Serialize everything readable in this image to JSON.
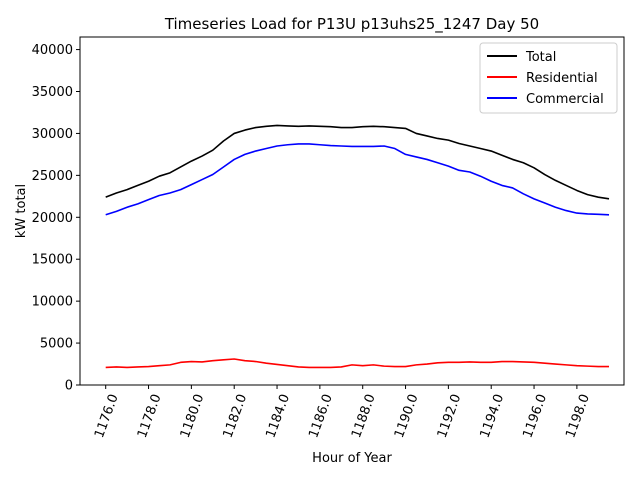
{
  "chart_data": {
    "type": "line",
    "title": "Timeseries Load for P13U p13uhs25_1247  Day 50",
    "xlabel": "Hour of Year",
    "ylabel": "kW total",
    "xlim": [
      1174.8,
      1200.2
    ],
    "ylim": [
      0,
      41500
    ],
    "xticks": [
      1176,
      1178,
      1180,
      1182,
      1184,
      1186,
      1188,
      1190,
      1192,
      1194,
      1196,
      1198
    ],
    "xtick_labels": [
      "1176.0",
      "1178.0",
      "1180.0",
      "1182.0",
      "1184.0",
      "1186.0",
      "1188.0",
      "1190.0",
      "1192.0",
      "1194.0",
      "1196.0",
      "1198.0"
    ],
    "yticks": [
      0,
      5000,
      10000,
      15000,
      20000,
      25000,
      30000,
      35000,
      40000
    ],
    "ytick_labels": [
      "0",
      "5000",
      "10000",
      "15000",
      "20000",
      "25000",
      "30000",
      "35000",
      "40000"
    ],
    "legend_position": "top-right",
    "x": [
      1176,
      1176.5,
      1177,
      1177.5,
      1178,
      1178.5,
      1179,
      1179.5,
      1180,
      1180.5,
      1181,
      1181.5,
      1182,
      1182.5,
      1183,
      1183.5,
      1184,
      1184.5,
      1185,
      1185.5,
      1186,
      1186.5,
      1187,
      1187.5,
      1188,
      1188.5,
      1189,
      1189.5,
      1190,
      1190.5,
      1191,
      1191.5,
      1192,
      1192.5,
      1193,
      1193.5,
      1194,
      1194.5,
      1195,
      1195.5,
      1196,
      1196.5,
      1197,
      1197.5,
      1198,
      1198.5,
      1199,
      1199.5
    ],
    "series": [
      {
        "name": "Total",
        "color": "#000000",
        "values": [
          22400,
          22900,
          23300,
          23800,
          24300,
          24900,
          25300,
          26000,
          26700,
          27300,
          28000,
          29100,
          30000,
          30400,
          30700,
          30850,
          30950,
          30900,
          30850,
          30900,
          30850,
          30800,
          30700,
          30700,
          30800,
          30850,
          30800,
          30700,
          30600,
          30000,
          29700,
          29400,
          29200,
          28800,
          28500,
          28200,
          27900,
          27400,
          26900,
          26500,
          25900,
          25100,
          24400,
          23800,
          23200,
          22700,
          22400,
          22200
        ]
      },
      {
        "name": "Residential",
        "color": "#ff0000",
        "values": [
          2100,
          2150,
          2100,
          2150,
          2200,
          2300,
          2400,
          2700,
          2800,
          2750,
          2900,
          3000,
          3100,
          2900,
          2800,
          2600,
          2450,
          2300,
          2150,
          2100,
          2100,
          2100,
          2150,
          2400,
          2300,
          2400,
          2250,
          2200,
          2200,
          2400,
          2500,
          2650,
          2700,
          2700,
          2750,
          2700,
          2700,
          2800,
          2800,
          2750,
          2700,
          2600,
          2500,
          2400,
          2300,
          2250,
          2200,
          2200
        ]
      },
      {
        "name": "Commercial",
        "color": "#0000ff",
        "values": [
          20300,
          20700,
          21200,
          21600,
          22100,
          22600,
          22900,
          23300,
          23900,
          24500,
          25100,
          26000,
          26900,
          27500,
          27900,
          28200,
          28500,
          28650,
          28750,
          28750,
          28650,
          28550,
          28500,
          28450,
          28450,
          28450,
          28500,
          28200,
          27500,
          27200,
          26900,
          26500,
          26100,
          25600,
          25400,
          24900,
          24300,
          23800,
          23500,
          22800,
          22200,
          21700,
          21200,
          20800,
          20500,
          20400,
          20350,
          20300
        ]
      }
    ]
  }
}
